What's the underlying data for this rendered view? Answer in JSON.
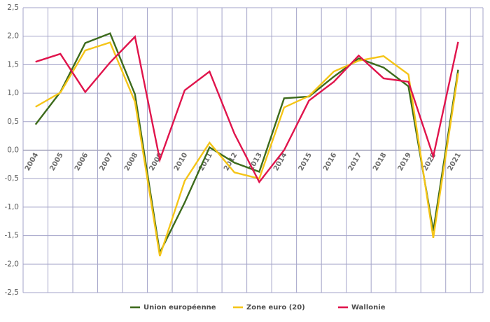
{
  "chart_data": {
    "type": "line",
    "title": "",
    "xlabel": "",
    "ylabel": "",
    "ylim": [
      -2.5,
      2.5
    ],
    "y_ticks": [
      2.5,
      2.0,
      1.5,
      1.0,
      0.5,
      0.0,
      -0.5,
      -1.0,
      -1.5,
      -2.0,
      -2.5
    ],
    "y_tick_labels": [
      "2,5",
      "2,0",
      "1,5",
      "1,0",
      "0,5",
      "0,0",
      "-0,5",
      "-1,0",
      "-1,5",
      "-2,0",
      "-2,5"
    ],
    "categories": [
      "2004",
      "2005",
      "2006",
      "2007",
      "2008",
      "2009",
      "2010",
      "2011",
      "2012",
      "2013",
      "2014",
      "2015",
      "2016",
      "2017",
      "2018",
      "2019",
      "2020",
      "2021"
    ],
    "grid": true,
    "legend_position": "bottom",
    "colors": {
      "grid": "#a3a3c8",
      "zero_line": "#8a8aa8"
    },
    "series": [
      {
        "name": "Union européenne",
        "color": "#3d6b1c",
        "values": [
          0.45,
          1.02,
          1.88,
          2.05,
          0.98,
          -1.8,
          -0.92,
          0.05,
          -0.22,
          -0.38,
          0.91,
          0.94,
          1.29,
          1.61,
          1.45,
          1.12,
          -1.42,
          1.41
        ]
      },
      {
        "name": "Zone euro (20)",
        "color": "#f5c518",
        "values": [
          0.76,
          1.01,
          1.75,
          1.89,
          0.85,
          -1.86,
          -0.54,
          0.13,
          -0.39,
          -0.5,
          0.75,
          0.95,
          1.38,
          1.57,
          1.65,
          1.33,
          -1.54,
          1.35
        ]
      },
      {
        "name": "Wallonie",
        "color": "#e0144c",
        "values": [
          1.55,
          1.69,
          1.02,
          1.54,
          1.99,
          -0.17,
          1.05,
          1.38,
          0.29,
          -0.56,
          0.0,
          0.87,
          1.2,
          1.66,
          1.26,
          1.2,
          -0.11,
          1.9
        ]
      }
    ]
  }
}
